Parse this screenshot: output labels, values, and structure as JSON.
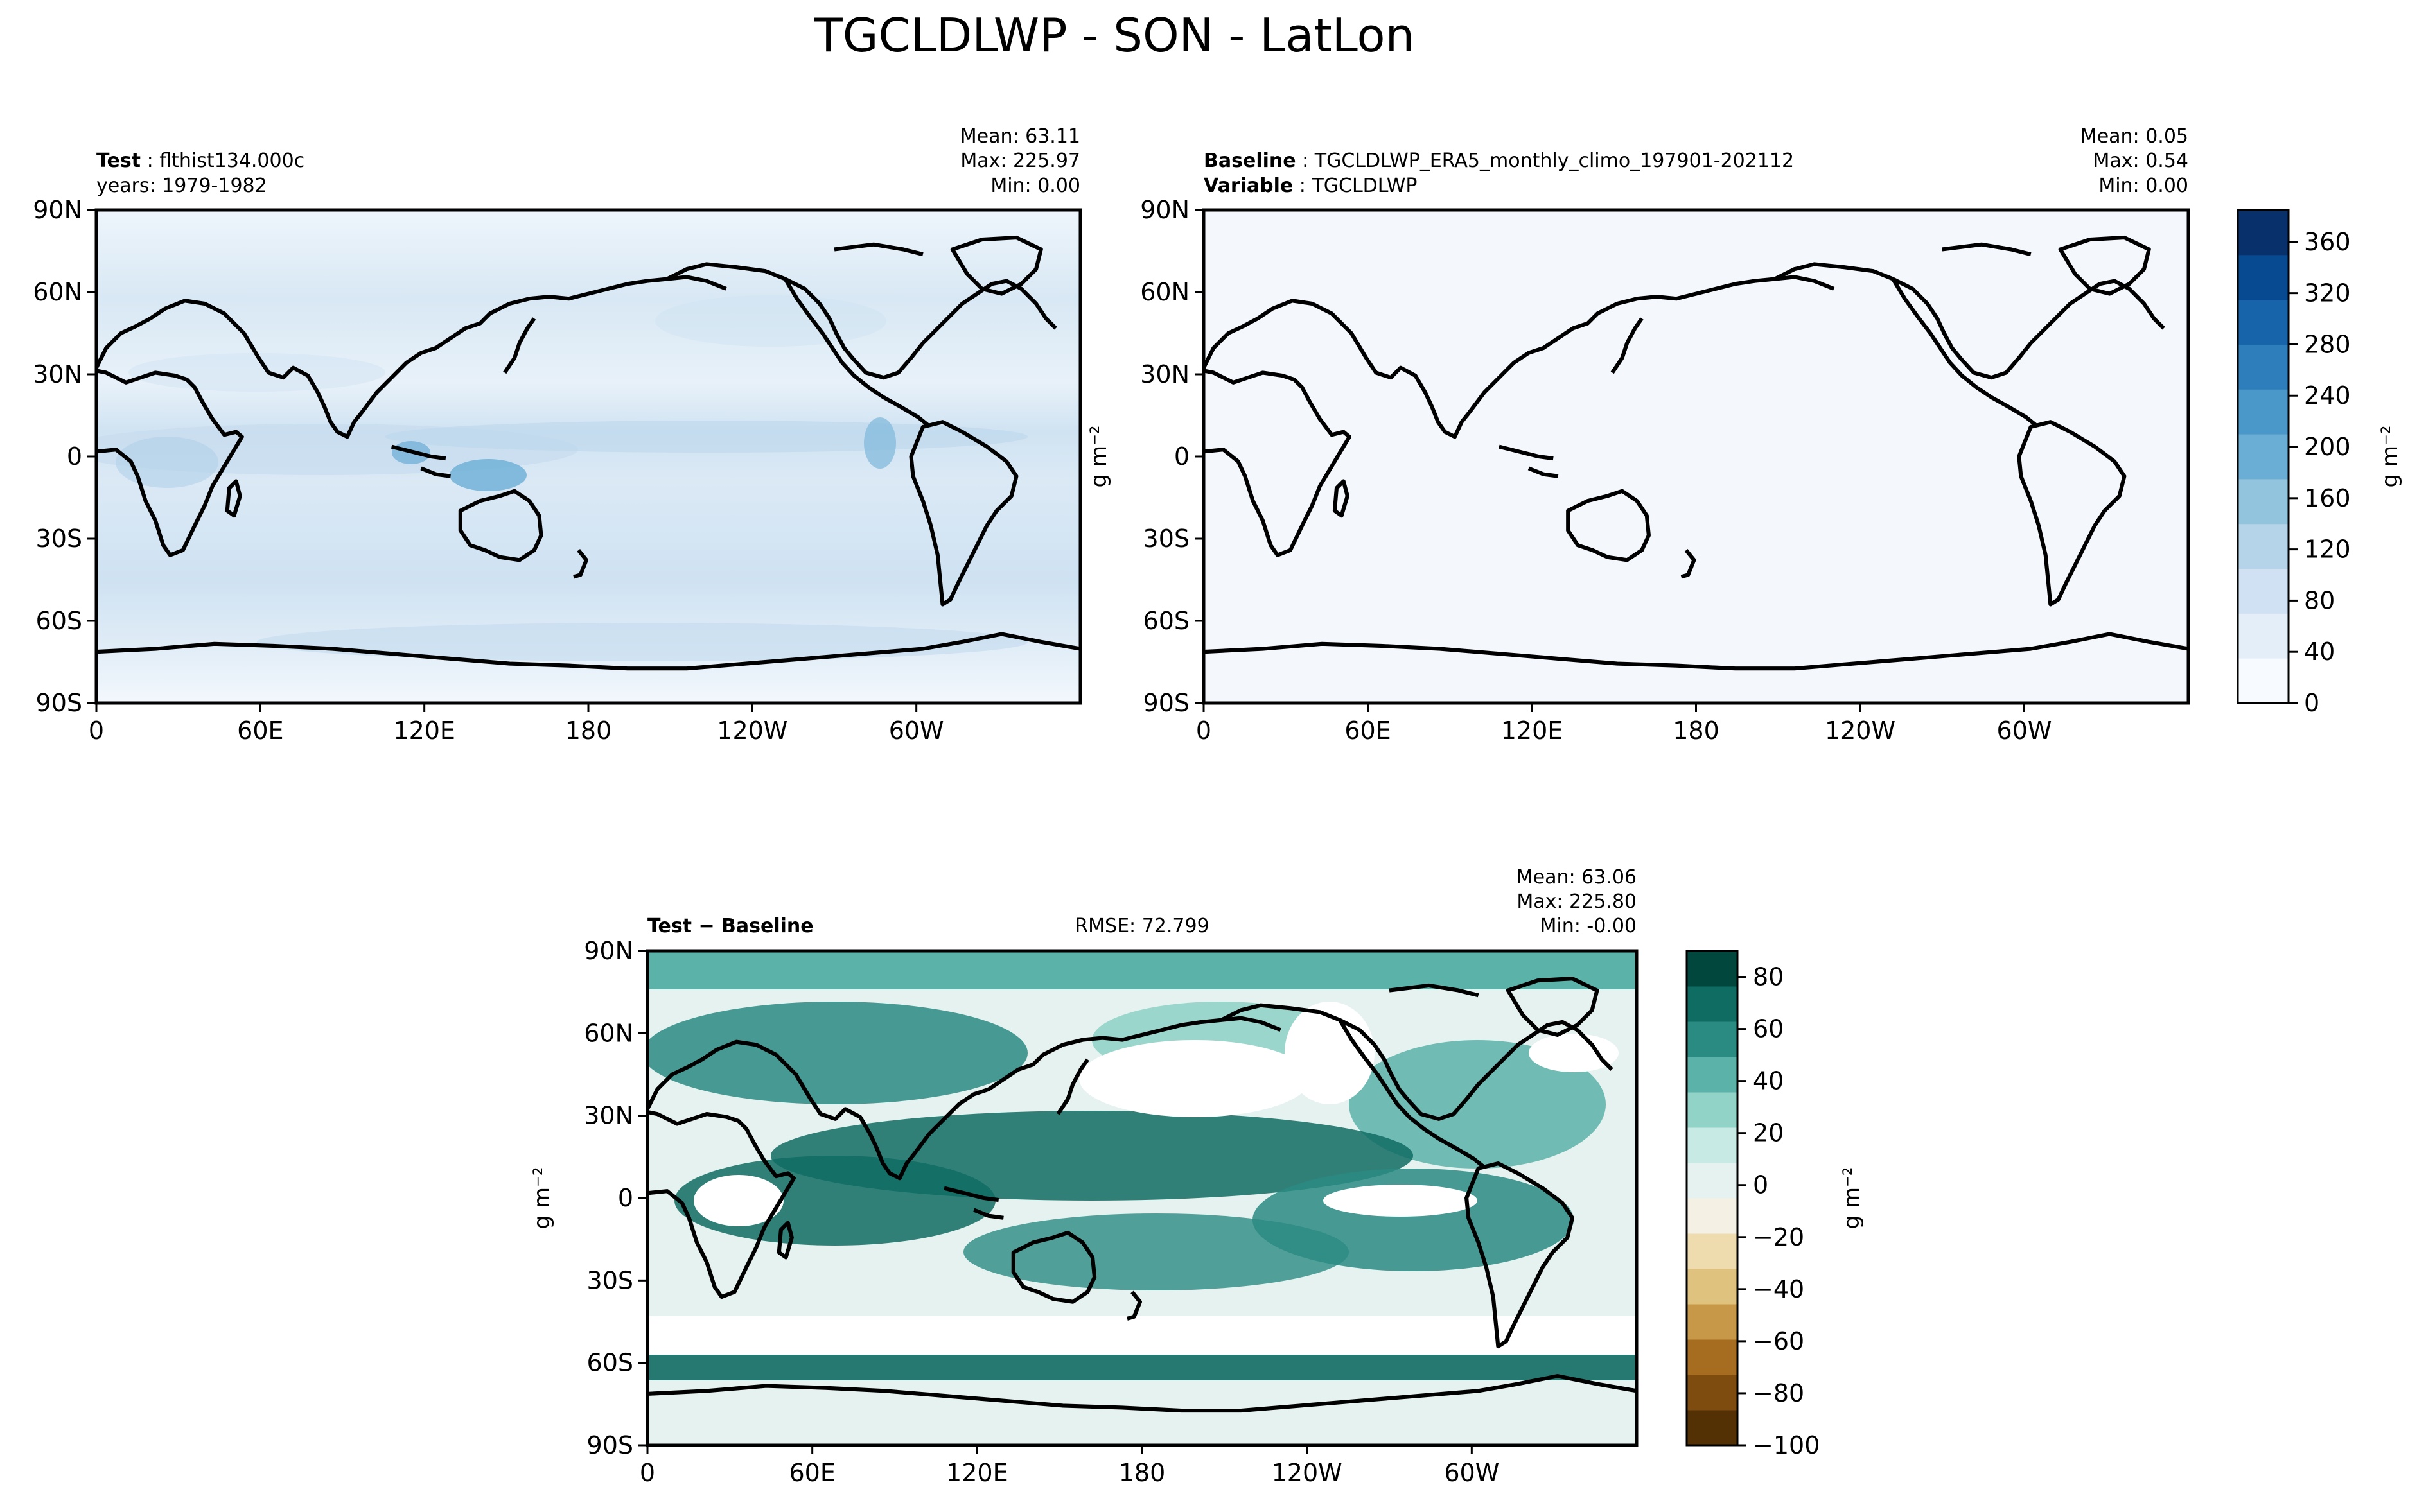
{
  "figure": {
    "title": "TGCLDLWP - SON - LatLon"
  },
  "chart_data": [
    {
      "type": "heatmap",
      "panel": "test",
      "header_label": "Test",
      "header_value": "flthist134.000c",
      "header_label2": "",
      "header_value2": "years: 1979-1982",
      "stats": {
        "mean": "Mean: 63.11",
        "max": "Max: 225.97",
        "min": "Min:  0.00"
      },
      "x_ticks": [
        "0",
        "60E",
        "120E",
        "180",
        "120W",
        "60W"
      ],
      "y_ticks": [
        "90N",
        "60N",
        "30N",
        "0",
        "30S",
        "60S",
        "90S"
      ],
      "xlim": [
        0,
        360
      ],
      "ylim": [
        -90,
        90
      ],
      "ylabel": "",
      "colormap": "Blues",
      "value_range": [
        0,
        380
      ]
    },
    {
      "type": "heatmap",
      "panel": "baseline",
      "header_label": "Baseline",
      "header_value": "TGCLDLWP_ERA5_monthly_climo_197901-202112",
      "header_label2": "Variable",
      "header_value2": "TGCLDLWP",
      "stats": {
        "mean": "Mean:  0.05",
        "max": "Max:  0.54",
        "min": "Min:  0.00"
      },
      "x_ticks": [
        "0",
        "60E",
        "120E",
        "180",
        "120W",
        "60W"
      ],
      "y_ticks": [
        "90N",
        "60N",
        "30N",
        "0",
        "30S",
        "60S",
        "90S"
      ],
      "xlim": [
        0,
        360
      ],
      "ylim": [
        -90,
        90
      ],
      "ylabel": "g m⁻²",
      "colormap": "Blues",
      "value_range": [
        0,
        380
      ]
    },
    {
      "type": "heatmap",
      "panel": "difference",
      "header_label": "Test − Baseline",
      "rmse": "RMSE: 72.799",
      "stats": {
        "mean": "Mean: 63.06",
        "max": "Max: 225.80",
        "min": "Min: -0.00"
      },
      "x_ticks": [
        "0",
        "60E",
        "120E",
        "180",
        "120W",
        "60W"
      ],
      "y_ticks": [
        "90N",
        "60N",
        "30N",
        "0",
        "30S",
        "60S",
        "90S"
      ],
      "xlim": [
        0,
        360
      ],
      "ylim": [
        -90,
        90
      ],
      "ylabel": "g m⁻²",
      "colormap": "BrBG",
      "value_range": [
        -100,
        90
      ]
    }
  ],
  "colorbars": {
    "main": {
      "ticks": [
        "360",
        "320",
        "280",
        "240",
        "200",
        "160",
        "120",
        "80",
        "40",
        "0"
      ],
      "values": [
        360,
        320,
        280,
        240,
        200,
        160,
        120,
        80,
        40,
        0
      ],
      "range": [
        0,
        385
      ],
      "label": "g m⁻²",
      "colors": [
        "#f7fbff",
        "#e3eef9",
        "#cfe1f2",
        "#b5d4e9",
        "#93c4de",
        "#6aaed6",
        "#4a98c9",
        "#2e7ebc",
        "#1764ab",
        "#084a91",
        "#08306b"
      ]
    },
    "diff": {
      "ticks": [
        "80",
        "60",
        "40",
        "20",
        "0",
        "−20",
        "−40",
        "−60",
        "−80",
        "−100"
      ],
      "values": [
        80,
        60,
        40,
        20,
        0,
        -20,
        -40,
        -60,
        -80,
        -100
      ],
      "range": [
        -100,
        90
      ],
      "label": "g m⁻²",
      "colors": [
        "#543005",
        "#7e4c0f",
        "#a66d21",
        "#c79848",
        "#dfc27d",
        "#eedcaf",
        "#f5f0e4",
        "#e6f2f0",
        "#c7eae5",
        "#92d3c8",
        "#5ab2a8",
        "#2a8b83",
        "#0f6c63",
        "#01473d"
      ]
    }
  }
}
